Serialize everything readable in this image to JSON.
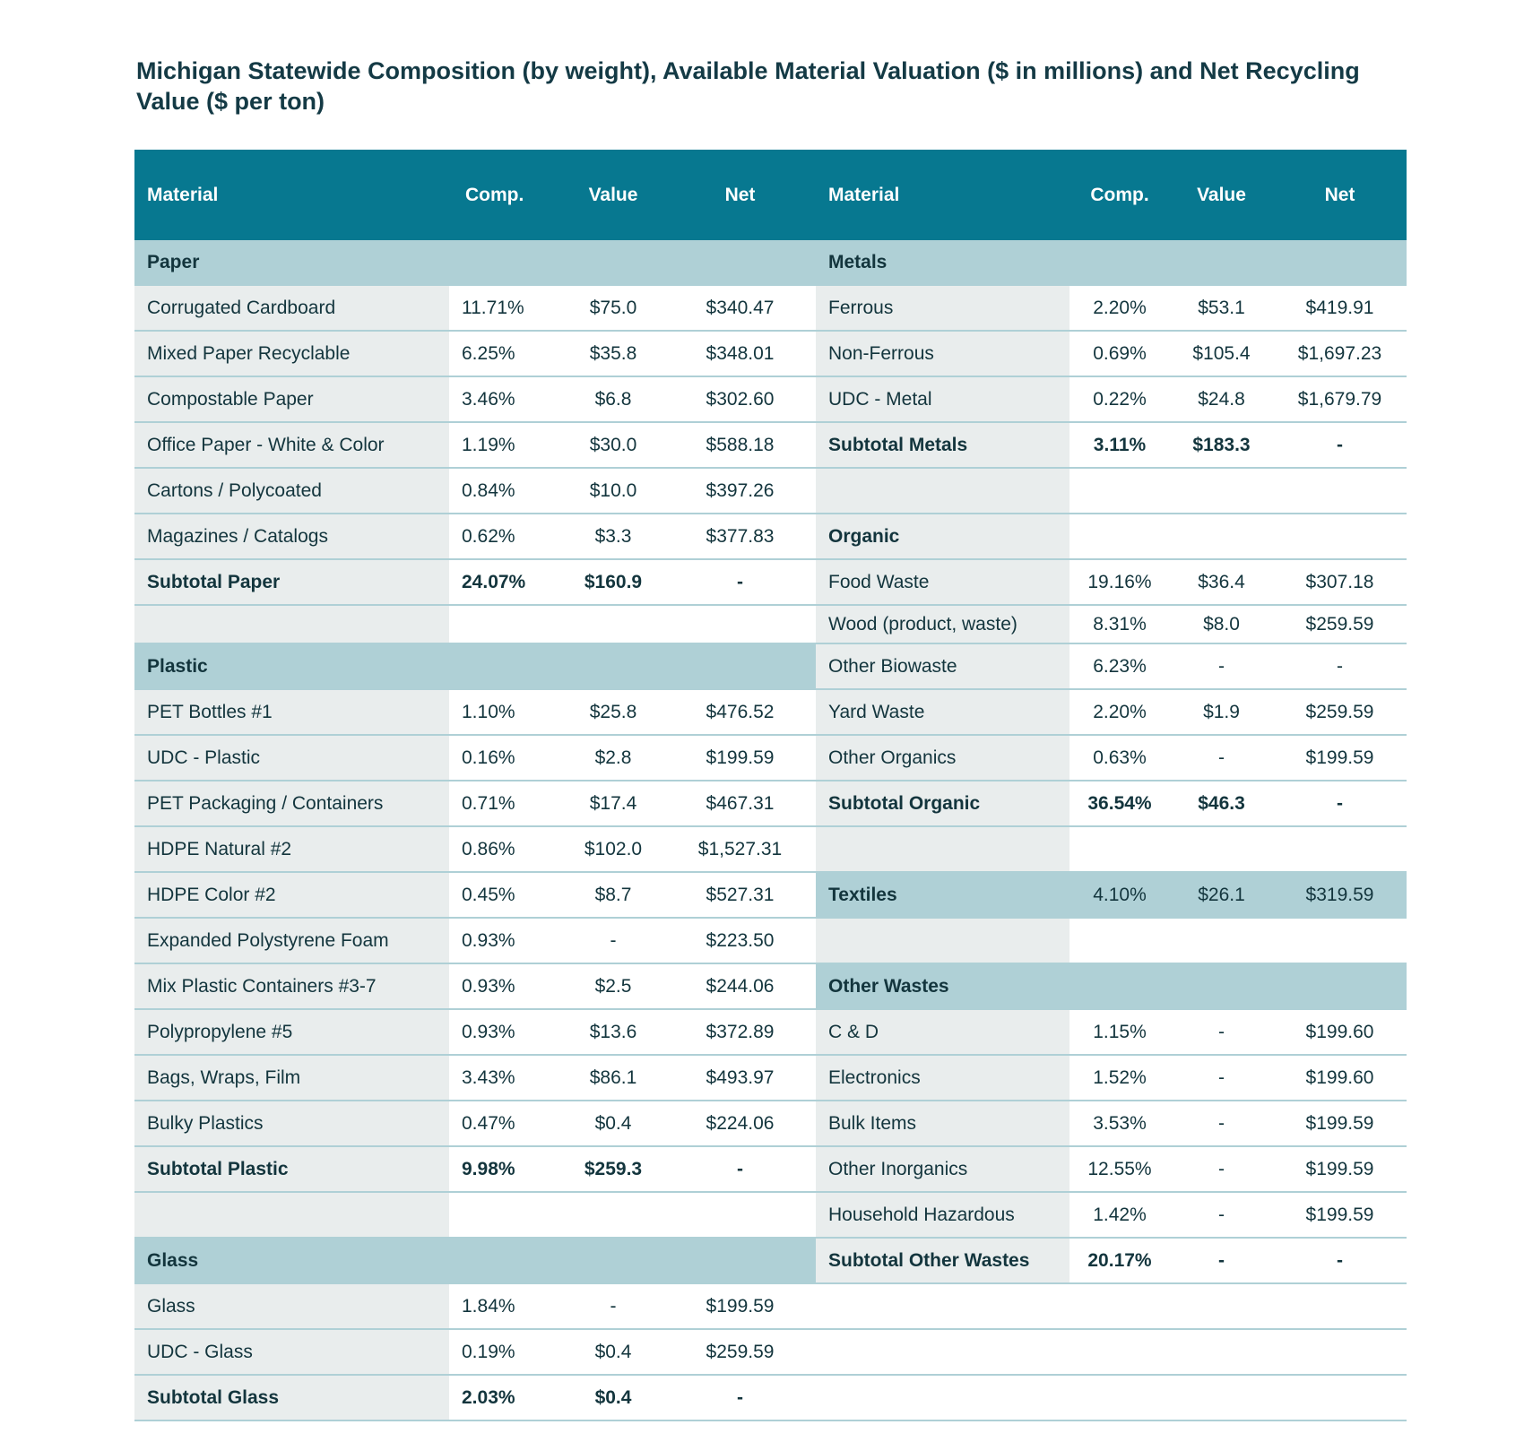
{
  "title": "Michigan Statewide Composition (by weight), Available Material Valuation ($ in millions) and Net Recycling Value ($ per ton)",
  "headers": [
    "Material",
    "Comp.",
    "Value",
    "Net",
    "Material",
    "Comp.",
    "Value",
    "Net"
  ],
  "colors": {
    "header": "#077890",
    "section": "#afd0d6",
    "material_bg": "#e9eded",
    "text": "#13353d"
  },
  "rows": [
    {
      "left": {
        "type": "section",
        "label": "Paper"
      },
      "right": {
        "type": "section",
        "label": "Metals"
      }
    },
    {
      "left": {
        "type": "item",
        "label": "Corrugated Cardboard",
        "comp": "11.71%",
        "value": "$75.0",
        "net": "$340.47"
      },
      "right": {
        "type": "item",
        "label": "Ferrous",
        "comp": "2.20%",
        "value": "$53.1",
        "net": "$419.91"
      }
    },
    {
      "left": {
        "type": "item",
        "label": "Mixed Paper Recyclable",
        "comp": "6.25%",
        "value": "$35.8",
        "net": "$348.01"
      },
      "right": {
        "type": "item",
        "label": "Non-Ferrous",
        "comp": "0.69%",
        "value": "$105.4",
        "net": "$1,697.23"
      }
    },
    {
      "left": {
        "type": "item",
        "label": "Compostable Paper",
        "comp": "3.46%",
        "value": "$6.8",
        "net": "$302.60"
      },
      "right": {
        "type": "item",
        "label": "UDC - Metal",
        "comp": "0.22%",
        "value": "$24.8",
        "net": "$1,679.79"
      }
    },
    {
      "left": {
        "type": "item",
        "label": "Office Paper -  White & Color",
        "comp": "1.19%",
        "value": "$30.0",
        "net": "$588.18"
      },
      "right": {
        "type": "subtotal",
        "label": "Subtotal Metals",
        "comp": "3.11%",
        "value": "$183.3",
        "net": "-"
      }
    },
    {
      "left": {
        "type": "item",
        "label": "Cartons / Polycoated",
        "comp": "0.84%",
        "value": "$10.0",
        "net": "$397.26"
      },
      "right": {
        "type": "blank"
      }
    },
    {
      "left": {
        "type": "item",
        "label": "Magazines / Catalogs",
        "comp": "0.62%",
        "value": "$3.3",
        "net": "$377.83"
      },
      "right": {
        "type": "subhead",
        "label": "Organic"
      }
    },
    {
      "left": {
        "type": "subtotal",
        "label": "Subtotal Paper",
        "comp": "24.07%",
        "value": "$160.9",
        "net": "-"
      },
      "right": {
        "type": "item",
        "label": "Food Waste",
        "comp": "19.16%",
        "value": "$36.4",
        "net": "$307.18"
      }
    },
    {
      "short": true,
      "left": {
        "type": "blank"
      },
      "right": {
        "type": "item",
        "label": "Wood (product, waste)",
        "comp": "8.31%",
        "value": "$8.0",
        "net": "$259.59"
      }
    },
    {
      "left": {
        "type": "section",
        "label": "Plastic"
      },
      "right": {
        "type": "item",
        "label": "Other Biowaste",
        "comp": "6.23%",
        "value": "-",
        "net": "-"
      }
    },
    {
      "left": {
        "type": "item",
        "label": "PET Bottles #1",
        "comp": "1.10%",
        "value": "$25.8",
        "net": "$476.52"
      },
      "right": {
        "type": "item",
        "label": "Yard Waste",
        "comp": "2.20%",
        "value": "$1.9",
        "net": "$259.59"
      }
    },
    {
      "left": {
        "type": "item",
        "label": "UDC - Plastic",
        "comp": "0.16%",
        "value": "$2.8",
        "net": "$199.59"
      },
      "right": {
        "type": "item",
        "label": "Other Organics",
        "comp": "0.63%",
        "value": "-",
        "net": "$199.59"
      }
    },
    {
      "left": {
        "type": "item",
        "label": "PET Packaging / Containers",
        "comp": "0.71%",
        "value": "$17.4",
        "net": "$467.31"
      },
      "right": {
        "type": "subtotal",
        "label": "Subtotal Organic",
        "comp": "36.54%",
        "value": "$46.3",
        "net": "-"
      }
    },
    {
      "left": {
        "type": "item",
        "label": "HDPE Natural #2",
        "comp": "0.86%",
        "value": "$102.0",
        "net": "$1,527.31"
      },
      "right": {
        "type": "blank"
      }
    },
    {
      "left": {
        "type": "item",
        "label": "HDPE Color #2",
        "comp": "0.45%",
        "value": "$8.7",
        "net": "$527.31"
      },
      "right": {
        "type": "band",
        "label": "Textiles",
        "comp": "4.10%",
        "value": "$26.1",
        "net": "$319.59"
      }
    },
    {
      "left": {
        "type": "item",
        "label": "Expanded Polystyrene Foam",
        "comp": "0.93%",
        "value": "-",
        "net": "$223.50"
      },
      "right": {
        "type": "blank"
      }
    },
    {
      "left": {
        "type": "item",
        "label": "Mix Plastic Containers #3-7",
        "comp": "0.93%",
        "value": "$2.5",
        "net": "$244.06"
      },
      "right": {
        "type": "section",
        "label": "Other Wastes"
      }
    },
    {
      "left": {
        "type": "item",
        "label": "Polypropylene #5",
        "comp": "0.93%",
        "value": "$13.6",
        "net": "$372.89"
      },
      "right": {
        "type": "item",
        "label": "C & D",
        "comp": "1.15%",
        "value": "-",
        "net": "$199.60"
      }
    },
    {
      "left": {
        "type": "item",
        "label": "Bags, Wraps, Film",
        "comp": "3.43%",
        "value": "$86.1",
        "net": "$493.97"
      },
      "right": {
        "type": "item",
        "label": "Electronics",
        "comp": "1.52%",
        "value": "-",
        "net": "$199.60"
      }
    },
    {
      "left": {
        "type": "item",
        "label": "Bulky Plastics",
        "comp": "0.47%",
        "value": "$0.4",
        "net": "$224.06"
      },
      "right": {
        "type": "item",
        "label": "Bulk Items",
        "comp": "3.53%",
        "value": "-",
        "net": "$199.59"
      }
    },
    {
      "left": {
        "type": "subtotal",
        "label": "Subtotal Plastic",
        "comp": "9.98%",
        "value": "$259.3",
        "net": "-"
      },
      "right": {
        "type": "item",
        "label": "Other Inorganics",
        "comp": "12.55%",
        "value": "-",
        "net": "$199.59"
      }
    },
    {
      "left": {
        "type": "blank"
      },
      "right": {
        "type": "item",
        "label": "Household Hazardous",
        "comp": "1.42%",
        "value": "-",
        "net": "$199.59"
      }
    },
    {
      "left": {
        "type": "section",
        "label": "Glass"
      },
      "right": {
        "type": "subtotal",
        "label": "Subtotal Other Wastes",
        "comp": "20.17%",
        "value": "-",
        "net": "-"
      }
    },
    {
      "left": {
        "type": "item",
        "label": "Glass",
        "comp": "1.84%",
        "value": "-",
        "net": "$199.59"
      },
      "right": {
        "type": "empty"
      }
    },
    {
      "left": {
        "type": "item",
        "label": "UDC - Glass",
        "comp": "0.19%",
        "value": "$0.4",
        "net": "$259.59"
      },
      "right": {
        "type": "empty"
      }
    },
    {
      "left": {
        "type": "subtotal",
        "label": "Subtotal Glass",
        "comp": "2.03%",
        "value": "$0.4",
        "net": "-"
      },
      "right": {
        "type": "empty"
      }
    }
  ]
}
